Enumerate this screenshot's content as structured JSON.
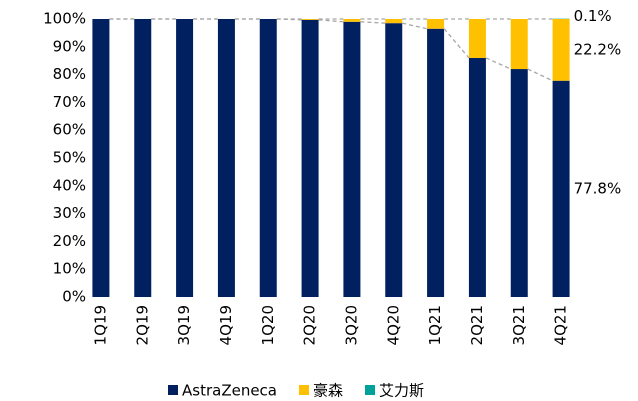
{
  "chart_data": {
    "type": "stacked_bar",
    "categories": [
      "1Q19",
      "2Q19",
      "3Q19",
      "4Q19",
      "1Q20",
      "2Q20",
      "3Q20",
      "4Q20",
      "1Q21",
      "2Q21",
      "3Q21",
      "4Q21"
    ],
    "series": [
      {
        "name": "AstraZeneca",
        "color": "#002060",
        "values": [
          100,
          100,
          100,
          100,
          100,
          99.7,
          99,
          98.5,
          96.5,
          86,
          82,
          77.8
        ],
        "value_labels": [
          null,
          null,
          null,
          null,
          null,
          null,
          null,
          null,
          null,
          null,
          null,
          "77.8%"
        ]
      },
      {
        "name": "豪森",
        "color": "#FFC000",
        "values": [
          0,
          0,
          0,
          0,
          0,
          0.3,
          1,
          1.5,
          3.5,
          14,
          18,
          22.2
        ],
        "value_labels": [
          null,
          null,
          null,
          null,
          null,
          null,
          null,
          null,
          null,
          null,
          null,
          "22.2%"
        ]
      },
      {
        "name": "艾力斯",
        "color": "#00A19A",
        "values": [
          0,
          0,
          0,
          0,
          0,
          0,
          0,
          0,
          0,
          0,
          0,
          0.1
        ],
        "value_labels": [
          null,
          null,
          null,
          null,
          null,
          null,
          null,
          null,
          null,
          null,
          null,
          "0.1%"
        ]
      }
    ],
    "ylim": [
      0,
      100
    ],
    "yticks": [
      {
        "value": 0,
        "label": "0%"
      },
      {
        "value": 10,
        "label": "10%"
      },
      {
        "value": 20,
        "label": "20%"
      },
      {
        "value": 30,
        "label": "30%"
      },
      {
        "value": 40,
        "label": "40%"
      },
      {
        "value": 50,
        "label": "50%"
      },
      {
        "value": 60,
        "label": "60%"
      },
      {
        "value": 70,
        "label": "70%"
      },
      {
        "value": 80,
        "label": "80%"
      },
      {
        "value": 90,
        "label": "90%"
      },
      {
        "value": 100,
        "label": "100%"
      }
    ],
    "legend": "bottom"
  }
}
